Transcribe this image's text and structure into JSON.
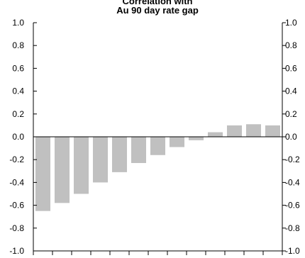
{
  "chart_data": {
    "type": "bar",
    "title_lines": [
      "Correlation with",
      "Au 90 day rate gap"
    ],
    "ylim": [
      -1.0,
      1.0
    ],
    "y_ticks": [
      "1.0",
      "0.8",
      "0.6",
      "0.4",
      "0.2",
      "0.0",
      "-0.2",
      "-0.4",
      "-0.6",
      "-0.8",
      "-1.0"
    ],
    "y_ticks_right": [
      "1.0",
      "0.8",
      "0.6",
      "0.4",
      "0.2",
      "0.0",
      "-0.2",
      "-0.4",
      "-0.6",
      "-0.8",
      "-1.0"
    ],
    "values": [
      -0.65,
      -0.58,
      -0.5,
      -0.4,
      -0.31,
      -0.23,
      -0.16,
      -0.09,
      -0.03,
      0.04,
      0.1,
      0.11,
      0.1
    ],
    "grid": false,
    "legend": "none",
    "bar_color": "#c0c0c0"
  }
}
